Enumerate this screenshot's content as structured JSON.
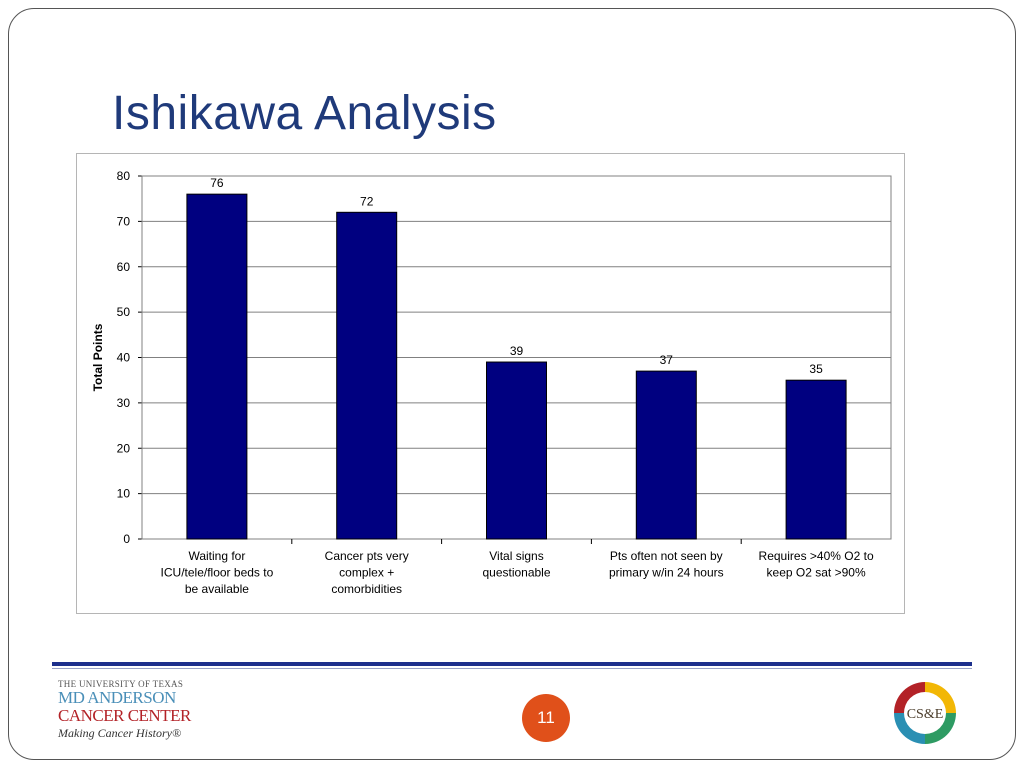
{
  "slide": {
    "title": "Ishikawa Analysis",
    "page_number": "11"
  },
  "chart_data": {
    "type": "bar",
    "title": "",
    "xlabel": "",
    "ylabel": "Total Points",
    "ylim": [
      0,
      80
    ],
    "yticks": [
      0,
      10,
      20,
      30,
      40,
      50,
      60,
      70,
      80
    ],
    "grid": true,
    "categories": [
      "Waiting for ICU/tele/floor beds to be available",
      "Cancer pts very complex + comorbidities",
      "Vital signs questionable",
      "Pts often not seen by primary w/in 24 hours",
      "Requires >40% O2 to keep O2 sat >90%"
    ],
    "category_lines": [
      [
        "Waiting for",
        "ICU/tele/floor beds to",
        "be available"
      ],
      [
        "Cancer pts very",
        "complex +",
        "comorbidities"
      ],
      [
        "Vital signs",
        "questionable"
      ],
      [
        "Pts often not seen by",
        "primary w/in 24 hours"
      ],
      [
        "Requires >40% O2 to",
        "keep O2 sat >90%"
      ]
    ],
    "values": [
      76,
      72,
      39,
      37,
      35
    ],
    "bar_color": "#000080"
  },
  "footer": {
    "logo_top": "THE UNIVERSITY OF TEXAS",
    "logo_line1": "MD ANDERSON",
    "logo_line2": "CANCER CENTER",
    "logo_tagline": "Making Cancer History®",
    "cse_logo_text": "CS&E",
    "cse_colors": [
      "#f2b705",
      "#2e9b63",
      "#2a8fb3",
      "#b32227"
    ]
  }
}
